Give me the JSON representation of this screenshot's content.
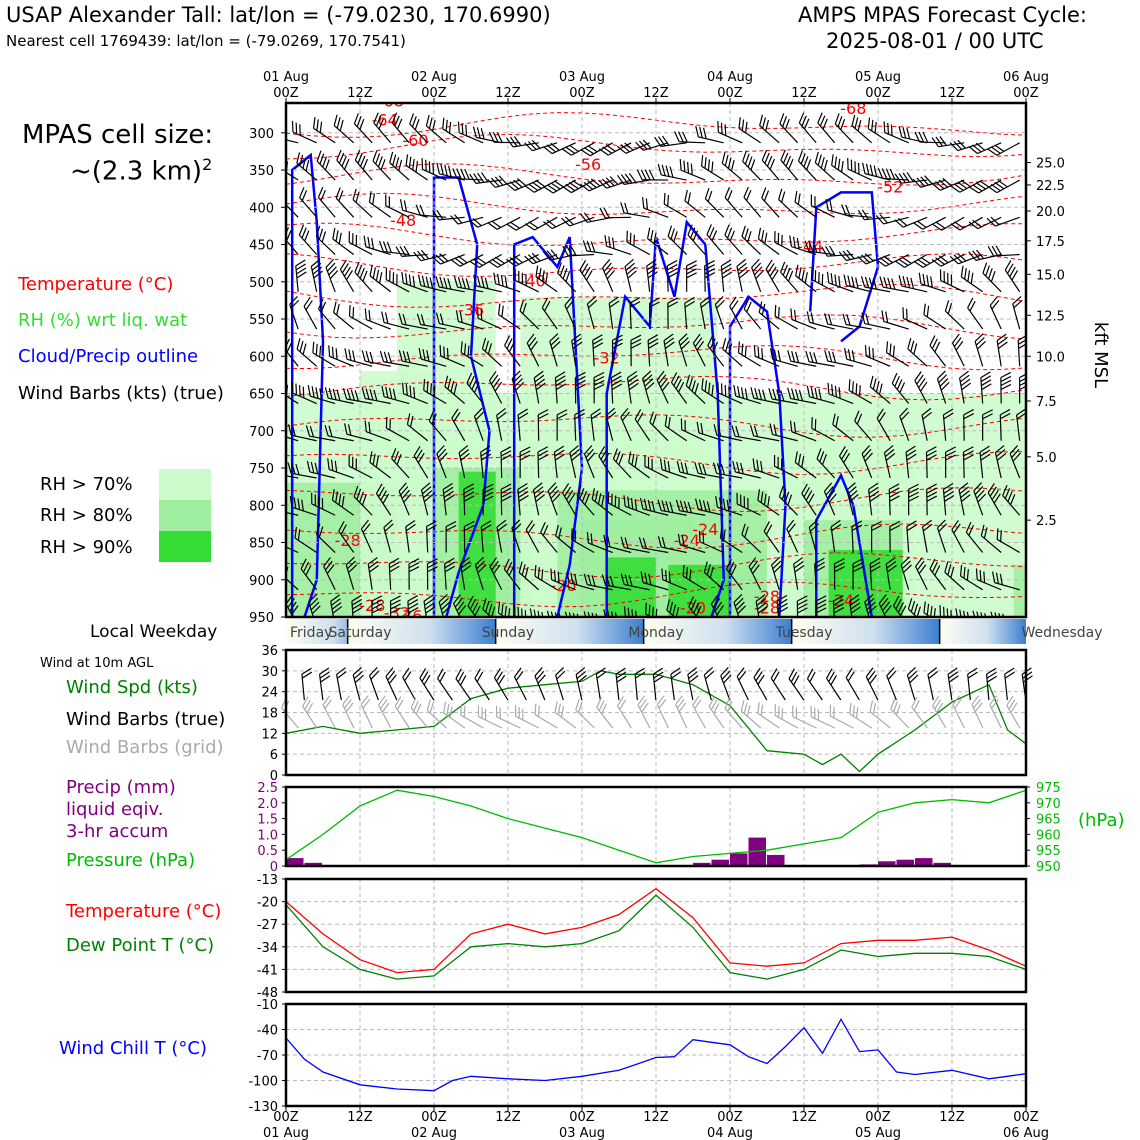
{
  "header": {
    "station_title": "USAP Alexander Tall: lat/lon = (-79.0230, 170.6990)",
    "nearest_cell": "Nearest cell 1769439: lat/lon = (-79.0269, 170.7541)",
    "forecast_title": "AMPS MPAS Forecast Cycle:",
    "forecast_cycle": "2025-08-01 / 00 UTC"
  },
  "left_panel": {
    "cell_size_label": "MPAS cell size:",
    "cell_size_value": "~(2.3 km)",
    "cell_size_exp": "2",
    "legend": [
      {
        "text": "Temperature (°C)",
        "color": "#ff0000"
      },
      {
        "text": "RH (%) wrt liq. wat",
        "color": "#33dd33"
      },
      {
        "text": "Cloud/Precip outline",
        "color": "#0000ff"
      },
      {
        "text": "Wind Barbs (kts) (true)",
        "color": "#000000"
      }
    ],
    "rh_legend": [
      {
        "text": "RH > 70%",
        "color": "#ccfccc"
      },
      {
        "text": "RH > 80%",
        "color": "#a0eea0"
      },
      {
        "text": "RH > 90%",
        "color": "#33dd33"
      }
    ]
  },
  "time_axis": {
    "tick_labels": [
      "00Z",
      "12Z",
      "00Z",
      "12Z",
      "00Z",
      "12Z",
      "00Z",
      "12Z",
      "00Z",
      "12Z",
      "00Z"
    ],
    "date_labels": [
      "01 Aug",
      "02 Aug",
      "03 Aug",
      "04 Aug",
      "05 Aug",
      "06 Aug"
    ]
  },
  "weekday_strip": {
    "label": "Local Weekday",
    "days": [
      "Friday",
      "Saturday",
      "Sunday",
      "Monday",
      "Tuesday",
      "Wednesday"
    ]
  },
  "panels": {
    "wind": {
      "title": "Wind at 10m AGL",
      "labels": [
        {
          "text": "Wind Spd (kts)",
          "color": "#008000"
        },
        {
          "text": "Wind Barbs (true)",
          "color": "#000000"
        },
        {
          "text": "Wind Barbs (grid)",
          "color": "#aaaaaa"
        }
      ]
    },
    "precip": {
      "labels": [
        {
          "text": "Precip (mm)",
          "color": "#800080"
        },
        {
          "text": "liquid eqiv.",
          "color": "#800080"
        },
        {
          "text": "3-hr accum",
          "color": "#800080"
        },
        {
          "text": "Pressure (hPa)",
          "color": "#00bb00"
        }
      ],
      "right_unit": "(hPa)"
    },
    "temp": {
      "labels": [
        {
          "text": "Temperature (°C)",
          "color": "#ff0000"
        },
        {
          "text": "Dew Point T (°C)",
          "color": "#008000"
        }
      ]
    },
    "windchill": {
      "labels": [
        {
          "text": "Wind Chill T (°C)",
          "color": "#0000ff"
        }
      ]
    }
  },
  "chart_data": [
    {
      "type": "heatmap",
      "name": "time-height cross section",
      "ylabel_right": "kft MSL",
      "y_ticks_left_hPa": [
        300,
        350,
        400,
        450,
        500,
        550,
        600,
        650,
        700,
        750,
        800,
        850,
        900,
        950
      ],
      "y_ticks_right_kft": [
        25.0,
        22.5,
        20.0,
        17.5,
        15.0,
        12.5,
        10.0,
        7.5,
        5.0,
        2.5
      ],
      "x_range_hours": [
        0,
        120
      ],
      "y_range_hPa": [
        950,
        260
      ],
      "temperature_contour_labels": [
        -68,
        -64,
        -60,
        -56,
        -52,
        -48,
        -44,
        -40,
        -36,
        -32,
        -28,
        -24,
        -20,
        -28,
        -32,
        -36,
        -24,
        -28,
        -68,
        -28,
        -24,
        -20
      ],
      "colors": {
        "temperature": "#ff0000",
        "cloud_outline": "#0000ff",
        "rh70": "#ccfccc",
        "rh80": "#a0eea0",
        "rh90": "#33dd33"
      }
    },
    {
      "type": "line",
      "name": "Wind at 10m AGL",
      "x_hours": [
        0,
        6,
        12,
        18,
        24,
        30,
        36,
        42,
        48,
        51,
        54,
        60,
        66,
        72,
        78,
        84,
        87,
        90,
        93,
        96,
        102,
        108,
        114,
        117,
        120
      ],
      "wind_speed_kts": [
        12,
        14,
        12,
        13,
        14,
        22,
        25,
        26,
        27,
        30,
        29,
        29,
        26,
        20,
        7,
        6,
        3,
        6,
        1,
        6,
        13,
        21,
        26,
        13,
        9
      ],
      "ylim": [
        0,
        36
      ],
      "y_ticks": [
        0,
        6,
        12,
        18,
        24,
        30,
        36
      ],
      "color": "#008000"
    },
    {
      "type": "bar",
      "name": "Precip 3-hr accum",
      "x_hours": [
        0,
        3,
        6,
        9,
        12,
        15,
        18,
        21,
        24,
        27,
        30,
        33,
        36,
        39,
        42,
        45,
        48,
        51,
        54,
        57,
        60,
        63,
        66,
        69,
        72,
        75,
        78,
        81,
        84,
        87,
        90,
        93,
        96,
        99,
        102,
        105,
        108,
        111,
        114,
        117
      ],
      "values_mm": [
        0.25,
        0.1,
        0,
        0,
        0,
        0,
        0,
        0,
        0,
        0,
        0,
        0,
        0,
        0,
        0,
        0,
        0,
        0,
        0,
        0,
        0,
        0,
        0.1,
        0.2,
        0.4,
        0.9,
        0.35,
        0,
        0,
        0,
        0,
        0.05,
        0.15,
        0.2,
        0.25,
        0.1,
        0,
        0,
        0,
        0
      ],
      "ylim": [
        0,
        2.5
      ],
      "y_ticks": [
        0,
        0.5,
        1.0,
        1.5,
        2.0,
        2.5
      ],
      "color": "#800080"
    },
    {
      "type": "line",
      "name": "Pressure (hPa)",
      "x_hours": [
        0,
        6,
        12,
        18,
        24,
        30,
        36,
        42,
        48,
        54,
        60,
        66,
        72,
        78,
        84,
        90,
        96,
        102,
        108,
        114,
        120
      ],
      "pressure_hPa": [
        952,
        960,
        969,
        974,
        972,
        969,
        965,
        962,
        959,
        955,
        951,
        953,
        954,
        955,
        957,
        959,
        967,
        970,
        971,
        970,
        974
      ],
      "ylim": [
        950,
        975
      ],
      "y_ticks": [
        950,
        955,
        960,
        965,
        970,
        975
      ],
      "color": "#00bb00"
    },
    {
      "type": "line",
      "name": "Temperature and Dew Point",
      "x_hours": [
        0,
        6,
        12,
        18,
        24,
        30,
        36,
        42,
        48,
        54,
        60,
        66,
        72,
        78,
        84,
        90,
        96,
        102,
        108,
        114,
        120
      ],
      "series": [
        {
          "name": "Temperature (°C)",
          "color": "#ff0000",
          "values": [
            -20,
            -30,
            -38,
            -42,
            -41,
            -30,
            -27,
            -30,
            -28,
            -24,
            -16,
            -25,
            -39,
            -40,
            -39,
            -33,
            -32,
            -32,
            -31,
            -35,
            -40
          ]
        },
        {
          "name": "Dew Point T (°C)",
          "color": "#008000",
          "values": [
            -21,
            -34,
            -41,
            -44,
            -43,
            -34,
            -33,
            -34,
            -33,
            -29,
            -18,
            -28,
            -42,
            -44,
            -41,
            -35,
            -37,
            -36,
            -36,
            -37,
            -41
          ]
        }
      ],
      "ylim": [
        -48,
        -13
      ],
      "y_ticks": [
        -48,
        -41,
        -34,
        -27,
        -20,
        -13
      ]
    },
    {
      "type": "line",
      "name": "Wind Chill T",
      "x_hours": [
        0,
        3,
        6,
        12,
        18,
        24,
        27,
        30,
        36,
        42,
        48,
        54,
        60,
        63,
        66,
        69,
        72,
        75,
        78,
        81,
        84,
        87,
        90,
        93,
        96,
        99,
        102,
        108,
        114,
        117,
        120
      ],
      "values": [
        -50,
        -75,
        -90,
        -105,
        -110,
        -112,
        -100,
        -95,
        -98,
        -100,
        -95,
        -88,
        -73,
        -72,
        -52,
        -55,
        -58,
        -72,
        -80,
        -60,
        -38,
        -68,
        -28,
        -66,
        -64,
        -90,
        -93,
        -88,
        -98,
        -95,
        -92
      ],
      "ylim": [
        -130,
        -10
      ],
      "y_ticks": [
        -130,
        -100,
        -70,
        -40,
        -10
      ],
      "color": "#0000ff"
    }
  ]
}
